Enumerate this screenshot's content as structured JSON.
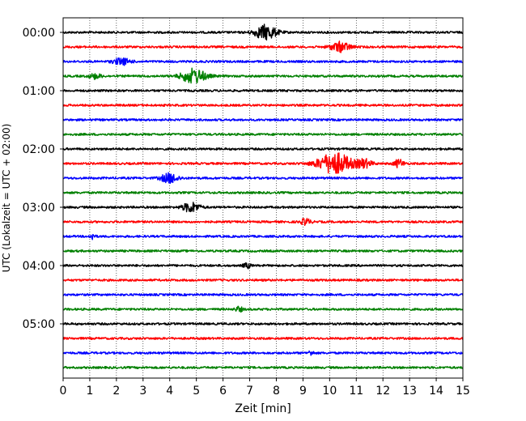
{
  "chart_data": {
    "type": "line",
    "title": "",
    "xlabel": "Zeit  [min]",
    "ylabel": "UTC (Lokalzeit = UTC + 02:00)",
    "xlim": [
      0,
      15
    ],
    "x_ticks": [
      "0",
      "1",
      "2",
      "3",
      "4",
      "5",
      "6",
      "7",
      "8",
      "9",
      "10",
      "11",
      "12",
      "13",
      "14",
      "15"
    ],
    "y_tick_labels": [
      "00:00",
      "01:00",
      "02:00",
      "03:00",
      "04:00",
      "05:00"
    ],
    "trace_interval_min": 15,
    "grid": "vertical dotted at each minute",
    "colors": [
      "#000000",
      "#ff0000",
      "#0000ff",
      "#008000"
    ],
    "series": [
      {
        "start": "00:00",
        "color": "#000000",
        "events": [
          {
            "t": 7.6,
            "amp": 9,
            "w": 0.9
          }
        ]
      },
      {
        "start": "00:15",
        "color": "#ff0000",
        "events": [
          {
            "t": 10.4,
            "amp": 6,
            "w": 0.8
          }
        ]
      },
      {
        "start": "00:30",
        "color": "#0000ff",
        "events": [
          {
            "t": 2.2,
            "amp": 4,
            "w": 0.7
          }
        ]
      },
      {
        "start": "00:45",
        "color": "#008000",
        "events": [
          {
            "t": 1.2,
            "amp": 3,
            "w": 0.5
          },
          {
            "t": 4.9,
            "amp": 9,
            "w": 1.0
          }
        ]
      },
      {
        "start": "01:00",
        "color": "#000000",
        "events": []
      },
      {
        "start": "01:15",
        "color": "#ff0000",
        "events": []
      },
      {
        "start": "01:30",
        "color": "#0000ff",
        "events": []
      },
      {
        "start": "01:45",
        "color": "#008000",
        "events": []
      },
      {
        "start": "02:00",
        "color": "#000000",
        "events": []
      },
      {
        "start": "02:15",
        "color": "#ff0000",
        "events": [
          {
            "t": 10.2,
            "amp": 13,
            "w": 1.4
          },
          {
            "t": 11.3,
            "amp": 5,
            "w": 0.6
          },
          {
            "t": 12.6,
            "amp": 5,
            "w": 0.4
          }
        ]
      },
      {
        "start": "02:30",
        "color": "#0000ff",
        "events": [
          {
            "t": 4.0,
            "amp": 6,
            "w": 0.7
          }
        ]
      },
      {
        "start": "02:45",
        "color": "#008000",
        "events": []
      },
      {
        "start": "03:00",
        "color": "#000000",
        "events": [
          {
            "t": 4.8,
            "amp": 6,
            "w": 0.7
          }
        ]
      },
      {
        "start": "03:15",
        "color": "#ff0000",
        "events": [
          {
            "t": 9.1,
            "amp": 4,
            "w": 0.4
          }
        ]
      },
      {
        "start": "03:30",
        "color": "#0000ff",
        "events": [
          {
            "t": 1.1,
            "amp": 4,
            "w": 0.2
          }
        ]
      },
      {
        "start": "03:45",
        "color": "#008000",
        "events": []
      },
      {
        "start": "04:00",
        "color": "#000000",
        "events": [
          {
            "t": 6.9,
            "amp": 3,
            "w": 0.3
          }
        ]
      },
      {
        "start": "04:15",
        "color": "#ff0000",
        "events": []
      },
      {
        "start": "04:30",
        "color": "#0000ff",
        "events": []
      },
      {
        "start": "04:45",
        "color": "#008000",
        "events": [
          {
            "t": 6.6,
            "amp": 3,
            "w": 0.3
          }
        ]
      },
      {
        "start": "05:00",
        "color": "#000000",
        "events": []
      },
      {
        "start": "05:15",
        "color": "#ff0000",
        "events": []
      },
      {
        "start": "05:30",
        "color": "#0000ff",
        "events": [
          {
            "t": 9.3,
            "amp": 3,
            "w": 0.2
          }
        ]
      },
      {
        "start": "05:45",
        "color": "#008000",
        "events": []
      }
    ]
  }
}
